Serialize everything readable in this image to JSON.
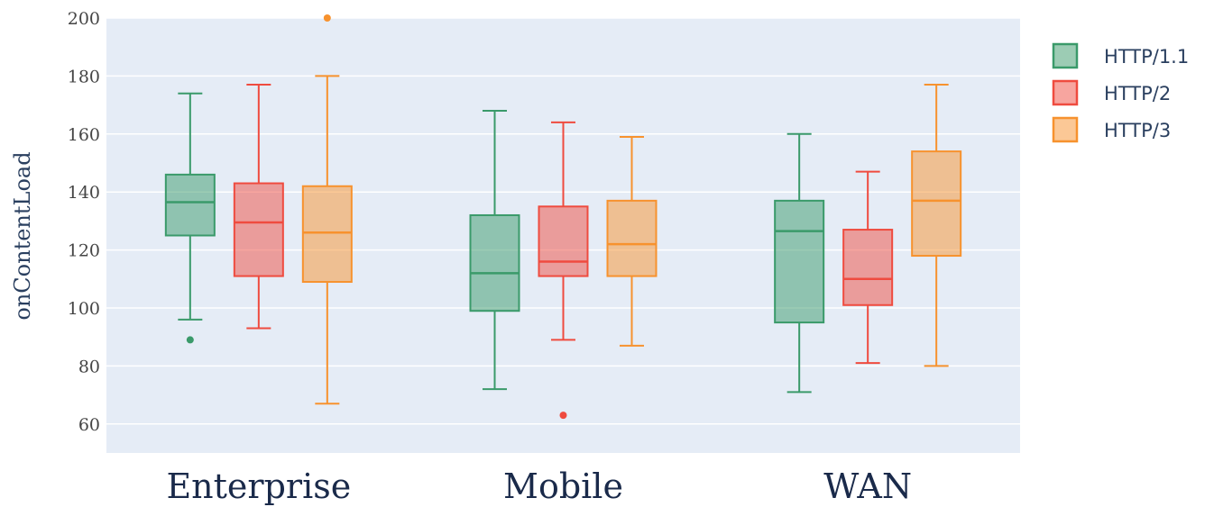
{
  "chart_data": {
    "type": "box",
    "ylabel": "onContentLoad",
    "xlabel": "",
    "ylim": [
      50,
      200
    ],
    "yticks": [
      60,
      80,
      100,
      120,
      140,
      160,
      180,
      200
    ],
    "grid": true,
    "legend_position": "top-right",
    "categories": [
      "Enterprise",
      "Mobile",
      "WAN"
    ],
    "series": [
      {
        "name": "HTTP/1.1",
        "color": "#3a9a6a",
        "boxes": [
          {
            "min": 96,
            "q1": 125,
            "median": 136.5,
            "q3": 146,
            "max": 174,
            "outliers": [
              89
            ]
          },
          {
            "min": 72,
            "q1": 99,
            "median": 112,
            "q3": 132,
            "max": 168,
            "outliers": []
          },
          {
            "min": 71,
            "q1": 95,
            "median": 126.5,
            "q3": 137,
            "max": 160,
            "outliers": []
          }
        ]
      },
      {
        "name": "HTTP/2",
        "color": "#ef4b3f",
        "boxes": [
          {
            "min": 93,
            "q1": 111,
            "median": 129.5,
            "q3": 143,
            "max": 177,
            "outliers": []
          },
          {
            "min": 89,
            "q1": 111,
            "median": 116,
            "q3": 135,
            "max": 164,
            "outliers": [
              63
            ]
          },
          {
            "min": 81,
            "q1": 101,
            "median": 110,
            "q3": 127,
            "max": 147,
            "outliers": []
          }
        ]
      },
      {
        "name": "HTTP/3",
        "color": "#f7922e",
        "boxes": [
          {
            "min": 67,
            "q1": 109,
            "median": 126,
            "q3": 142,
            "max": 180,
            "outliers": [
              200
            ]
          },
          {
            "min": 87,
            "q1": 111,
            "median": 122,
            "q3": 137,
            "max": 159,
            "outliers": []
          },
          {
            "min": 80,
            "q1": 118,
            "median": 137,
            "q3": 154,
            "max": 177,
            "outliers": []
          }
        ]
      }
    ]
  }
}
